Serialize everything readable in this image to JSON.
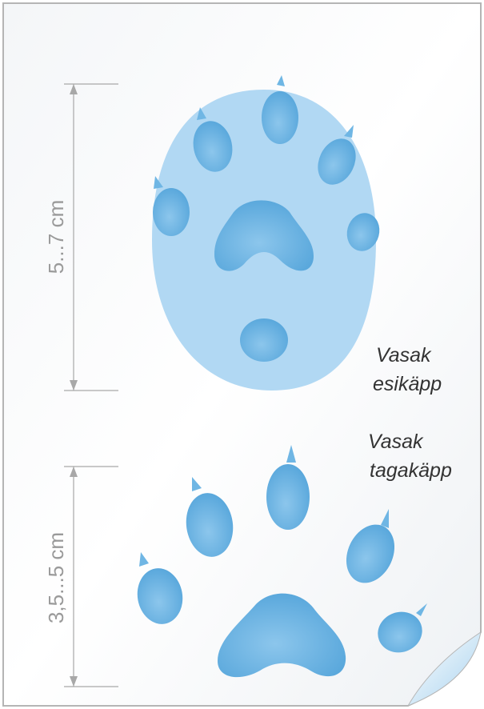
{
  "front_paw": {
    "size_label": "5...7 cm",
    "caption": [
      "Vasak",
      "esikäpp"
    ]
  },
  "hind_paw": {
    "size_label": "3,5...5 cm",
    "caption": [
      "Vasak",
      "tagakäpp"
    ]
  }
}
